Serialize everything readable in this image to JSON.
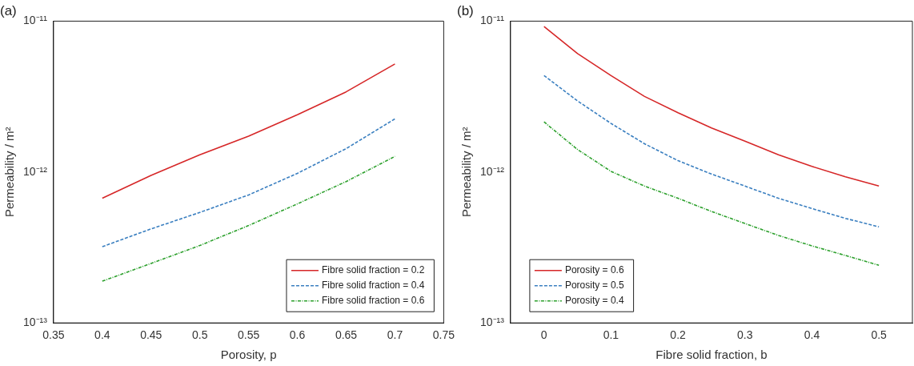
{
  "chart_data": [
    {
      "type": "line",
      "title": "(a)",
      "xlabel": "Porosity, p",
      "ylabel": "Permeability / m²",
      "log": "y",
      "grid": false,
      "legend": "bottom right",
      "marker": "none",
      "xlim": [
        0.35,
        0.75
      ],
      "xticks": [
        0.35,
        0.4,
        0.45,
        0.5,
        0.55,
        0.6,
        0.65,
        0.7,
        0.75
      ],
      "ylim": [
        1e-13,
        1e-11
      ],
      "yticks": [
        {
          "value": 1e-13,
          "label": "10⁻¹³"
        },
        {
          "value": 1e-12,
          "label": "10⁻¹²"
        },
        {
          "value": 1e-11,
          "label": "10⁻¹¹"
        }
      ],
      "x": [
        0.4,
        0.45,
        0.5,
        0.55,
        0.6,
        0.65,
        0.7
      ],
      "series": [
        {
          "name": "Fibre solid fraction = 0.2",
          "color": "#d62728",
          "line_style": "solid",
          "values": [
            6.7e-13,
            9.5e-13,
            1.3e-12,
            1.73e-12,
            2.4e-12,
            3.4e-12,
            5.2e-12
          ]
        },
        {
          "name": "Fibre solid fraction = 0.4",
          "color": "#3a7fc0",
          "line_style": "dashed",
          "values": [
            3.2e-13,
            4.2e-13,
            5.4e-13,
            7.05e-13,
            9.8e-13,
            1.43e-12,
            2.25e-12
          ]
        },
        {
          "name": "Fibre solid fraction = 0.6",
          "color": "#2ca02c",
          "line_style": "dotted",
          "values": [
            1.89e-13,
            2.48e-13,
            3.26e-13,
            4.42e-13,
            6.15e-13,
            8.65e-13,
            1.27e-12
          ]
        }
      ]
    },
    {
      "type": "line",
      "title": "(b)",
      "xlabel": "Fibre solid fraction, b",
      "ylabel": "Permeability / m²",
      "log": "y",
      "grid": false,
      "legend": "bottom left",
      "marker": "none",
      "xlim": [
        -0.05,
        0.55
      ],
      "xticks": [
        0,
        0.1,
        0.2,
        0.3,
        0.4,
        0.5
      ],
      "ylim": [
        1e-13,
        1e-11
      ],
      "yticks": [
        {
          "value": 1e-13,
          "label": "10⁻¹³"
        },
        {
          "value": 1e-12,
          "label": "10⁻¹²"
        },
        {
          "value": 1e-11,
          "label": "10⁻¹¹"
        }
      ],
      "x": [
        0,
        0.05,
        0.1,
        0.15,
        0.2,
        0.25,
        0.3,
        0.35,
        0.4,
        0.45,
        0.5
      ],
      "series": [
        {
          "name": "Porosity = 0.6",
          "color": "#d62728",
          "line_style": "solid",
          "values": [
            9.2e-12,
            6.1e-12,
            4.36e-12,
            3.17e-12,
            2.47e-12,
            1.96e-12,
            1.6e-12,
            1.3e-12,
            1.09e-12,
            9.3e-13,
            8.07e-13
          ]
        },
        {
          "name": "Porosity = 0.5",
          "color": "#3a7fc0",
          "line_style": "dashed",
          "values": [
            4.36e-12,
            2.96e-12,
            2.1e-12,
            1.54e-12,
            1.19e-12,
            9.7e-13,
            8.07e-13,
            6.7e-13,
            5.73e-13,
            4.93e-13,
            4.33e-13
          ]
        },
        {
          "name": "Porosity = 0.4",
          "color": "#2ca02c",
          "line_style": "dotted",
          "values": [
            2.15e-12,
            1.41e-12,
            1.01e-12,
            8.07e-13,
            6.7e-13,
            5.48e-13,
            4.56e-13,
            3.8e-13,
            3.24e-13,
            2.8e-13,
            2.41e-13
          ]
        }
      ]
    }
  ]
}
